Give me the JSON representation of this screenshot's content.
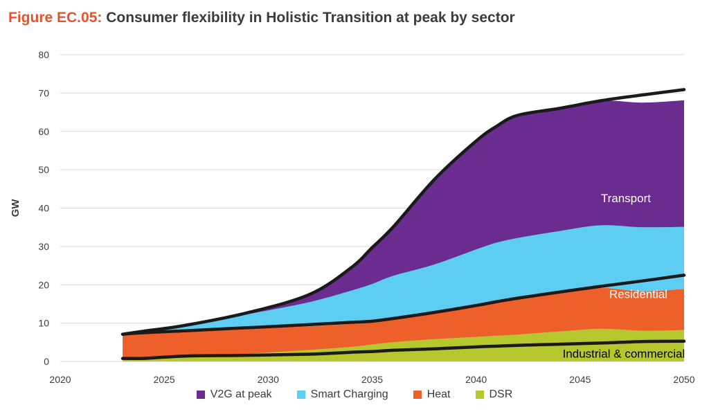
{
  "title": {
    "prefix": "Figure EC.05:",
    "text": "Consumer flexibility in Holistic Transition at peak by sector"
  },
  "chart_data": {
    "type": "area",
    "stacked": true,
    "ylabel": "GW",
    "xlabel": "",
    "xlim": [
      2020,
      2050
    ],
    "ylim": [
      0,
      80
    ],
    "xticks": [
      2020,
      2025,
      2030,
      2035,
      2040,
      2045,
      2050
    ],
    "yticks": [
      0,
      10,
      20,
      30,
      40,
      50,
      60,
      70,
      80
    ],
    "grid": "horizontal",
    "legend_position": "bottom",
    "x": [
      2023,
      2024,
      2026,
      2029,
      2032,
      2034,
      2035,
      2036,
      2038,
      2040,
      2041,
      2042,
      2044,
      2046,
      2048,
      2050
    ],
    "series": [
      {
        "name": "DSR",
        "color": "#b6c82e",
        "values": [
          0.3,
          0.5,
          1.1,
          2.0,
          3.0,
          3.8,
          4.4,
          5.0,
          5.8,
          6.4,
          6.7,
          7.0,
          7.8,
          8.5,
          8.0,
          8.2
        ]
      },
      {
        "name": "Heat",
        "color": "#ee602a",
        "values": [
          6.4,
          7.0,
          6.9,
          6.7,
          6.2,
          6.0,
          5.8,
          6.0,
          7.0,
          8.4,
          9.0,
          9.6,
          10.3,
          10.7,
          10.3,
          10.7
        ]
      },
      {
        "name": "Smart Charging",
        "color": "#5ecdf2",
        "values": [
          0.4,
          0.4,
          1.3,
          3.6,
          6.3,
          8.7,
          10.0,
          11.3,
          12.5,
          14.4,
          15.3,
          15.6,
          15.9,
          16.3,
          16.7,
          16.2
        ]
      },
      {
        "name": "V2G at peak",
        "color": "#6a2c8f",
        "values": [
          0.0,
          0.0,
          0.1,
          0.4,
          2.0,
          6.0,
          9.5,
          12.7,
          22.2,
          28.3,
          30.4,
          32.0,
          32.0,
          32.5,
          32.5,
          33.0
        ]
      }
    ],
    "totals_line": {
      "name": "Total",
      "values": [
        7.1,
        7.9,
        9.4,
        12.7,
        17.5,
        24.5,
        29.7,
        35.0,
        47.5,
        57.5,
        61.4,
        64.2,
        66.0,
        68.0,
        69.5,
        70.9
      ]
    },
    "sector_lines": [
      {
        "name": "Residential",
        "label": "Residential",
        "values": [
          7.1,
          7.5,
          8.0,
          8.8,
          9.6,
          10.2,
          10.5,
          11.2,
          12.8,
          14.6,
          15.6,
          16.5,
          18.1,
          19.6,
          21.0,
          22.5
        ]
      },
      {
        "name": "Industrial & commercial",
        "label": "Industrial & commercial",
        "values": [
          0.8,
          0.8,
          1.4,
          1.6,
          1.9,
          2.4,
          2.6,
          2.9,
          3.3,
          3.8,
          4.0,
          4.2,
          4.5,
          4.8,
          5.2,
          5.3
        ]
      }
    ],
    "annotations": [
      {
        "text": "Transport",
        "x": 2047.2,
        "y": 41.5,
        "color": "#ffffff"
      },
      {
        "text": "Residential",
        "x": 2047.8,
        "y": 16.5,
        "color": "#ffffff"
      },
      {
        "text": "Industrial & commercial",
        "x": 2047.1,
        "y": 1.0,
        "color": "#000000"
      }
    ]
  }
}
